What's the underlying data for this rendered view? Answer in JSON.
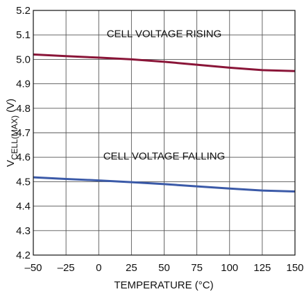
{
  "chart_data": {
    "type": "line",
    "xlabel": "TEMPERATURE (°C)",
    "ylabel": {
      "main": "V",
      "sub": "CELL(MAX)",
      "unit": " (V)"
    },
    "xlim": [
      -50,
      150
    ],
    "ylim": [
      4.2,
      5.2
    ],
    "xticks": [
      -50,
      -25,
      0,
      25,
      50,
      75,
      100,
      125,
      150
    ],
    "xtick_labels": [
      "–50",
      "–25",
      "0",
      "25",
      "50",
      "75",
      "100",
      "125",
      "150"
    ],
    "yticks": [
      4.2,
      4.3,
      4.4,
      4.5,
      4.6,
      4.7,
      4.8,
      4.9,
      5.0,
      5.1,
      5.2
    ],
    "ytick_labels": [
      "4.2",
      "4.3",
      "4.4",
      "4.5",
      "4.6",
      "4.7",
      "4.8",
      "4.9",
      "5.0",
      "5.1",
      "5.2"
    ],
    "grid": true,
    "series": [
      {
        "annotation": "CELL VOLTAGE RISING",
        "color": "#8a1538",
        "x": [
          -50,
          -25,
          0,
          25,
          50,
          75,
          100,
          125,
          150
        ],
        "y": [
          5.02,
          5.013,
          5.007,
          5.0,
          4.99,
          4.978,
          4.966,
          4.956,
          4.952
        ]
      },
      {
        "annotation": "CELL VOLTAGE FALLING",
        "color": "#3b5aa8",
        "x": [
          -50,
          -25,
          0,
          25,
          50,
          75,
          100,
          125,
          150
        ],
        "y": [
          4.518,
          4.511,
          4.505,
          4.498,
          4.49,
          4.481,
          4.472,
          4.464,
          4.46
        ]
      }
    ]
  }
}
